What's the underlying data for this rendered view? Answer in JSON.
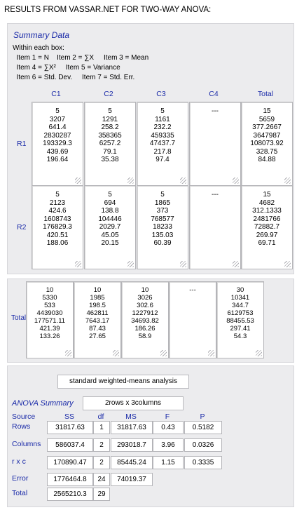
{
  "title": "RESULTS FROM VASSAR.NET FOR TWO-WAY ANOVA:",
  "summary": {
    "heading": "Summary Data",
    "legend": [
      "Within each box:",
      "  Item 1 = N    Item 2 = ∑X     Item 3 = Mean",
      "  Item 4 = ∑X²     Item 5 = Variance",
      "  Item 6 = Std. Dev.     Item 7 = Std. Err."
    ],
    "columns": [
      "C1",
      "C2",
      "C3",
      "C4",
      "Total"
    ],
    "rows": [
      {
        "label": "R1",
        "cells": [
          [
            "5",
            "3207",
            "641.4",
            "2830287",
            "193329.3",
            "439.69",
            "196.64"
          ],
          [
            "5",
            "1291",
            "258.2",
            "358365",
            "6257.2",
            "79.1",
            "35.38"
          ],
          [
            "5",
            "1161",
            "232.2",
            "459335",
            "47437.7",
            "217.8",
            "97.4"
          ],
          [
            "---"
          ],
          [
            "15",
            "5659",
            "377.2667",
            "3647987",
            "108073.92",
            "328.75",
            "84.88"
          ]
        ]
      },
      {
        "label": "R2",
        "cells": [
          [
            "5",
            "2123",
            "424.6",
            "1608743",
            "176829.3",
            "420.51",
            "188.06"
          ],
          [
            "5",
            "694",
            "138.8",
            "104446",
            "2029.7",
            "45.05",
            "20.15"
          ],
          [
            "5",
            "1865",
            "373",
            "768577",
            "18233",
            "135.03",
            "60.39"
          ],
          [
            "---"
          ],
          [
            "15",
            "4682",
            "312.1333",
            "2481766",
            "72882.7",
            "269.97",
            "69.71"
          ]
        ]
      }
    ]
  },
  "totals": {
    "label": "Total",
    "cells": [
      [
        "10",
        "5330",
        "533",
        "4439030",
        "177571.11",
        "421.39",
        "133.26"
      ],
      [
        "10",
        "1985",
        "198.5",
        "462811",
        "7643.17",
        "87.43",
        "27.65"
      ],
      [
        "10",
        "3026",
        "302.6",
        "1227912",
        "34693.82",
        "186.26",
        "58.9"
      ],
      [
        "---"
      ],
      [
        "30",
        "10341",
        "344.7",
        "6129753",
        "88455.53",
        "297.41",
        "54.3"
      ]
    ]
  },
  "anova": {
    "method_button": "standard weighted-means analysis",
    "heading": "ANOVA Summary",
    "design_button": "2rows x 3columns",
    "headers": [
      "Source",
      "SS",
      "df",
      "MS",
      "F",
      "P"
    ],
    "rows": [
      [
        "Rows",
        "31817.63",
        "1",
        "31817.63",
        "0.43",
        "0.5182"
      ],
      [
        "Columns",
        "586037.4",
        "2",
        "293018.7",
        "3.96",
        "0.0326"
      ],
      [
        "r x c",
        "170890.47",
        "2",
        "85445.24",
        "1.15",
        "0.3335"
      ],
      [
        "Error",
        "1776464.8",
        "24",
        "74019.37",
        "",
        ""
      ],
      [
        "Total",
        "2565210.3",
        "29",
        "",
        "",
        ""
      ]
    ]
  },
  "colors": {
    "accent": "#1a2aa8",
    "panel": "#ececee"
  }
}
